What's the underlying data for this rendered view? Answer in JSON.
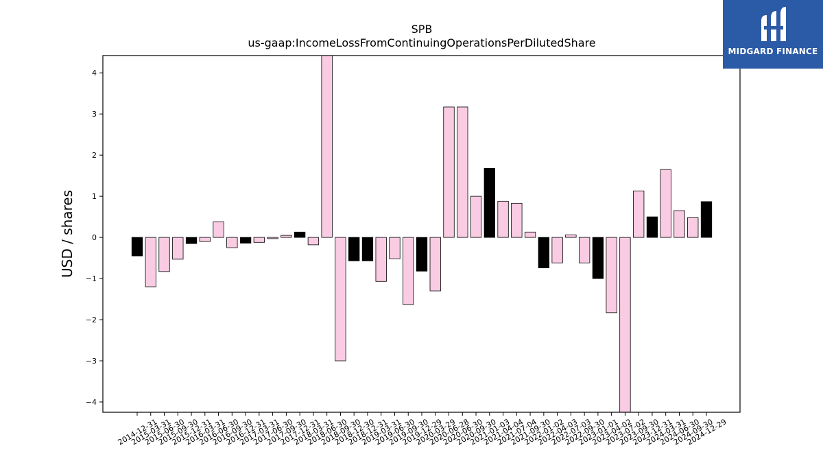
{
  "chart_data": {
    "type": "bar",
    "title": "SPB",
    "subtitle": "us-gaap:IncomeLossFromContinuingOperationsPerDilutedShare",
    "xlabel": "",
    "ylabel": "USD / shares",
    "ylim": [
      -4.25,
      4.42
    ],
    "yticks": [
      -4,
      -3,
      -2,
      -1,
      0,
      1,
      2,
      3,
      4
    ],
    "ytick_labels": [
      "−4",
      "−3",
      "−2",
      "−1",
      "0",
      "1",
      "2",
      "3",
      "4"
    ],
    "categories": [
      "2014-12-31",
      "2015-03-31",
      "2015-06-30",
      "2015-09-30",
      "2015-12-31",
      "2016-03-31",
      "2016-06-30",
      "2016-09-30",
      "2016-12-31",
      "2017-03-31",
      "2017-06-30",
      "2017-09-30",
      "2017-12-31",
      "2018-03-31",
      "2018-06-30",
      "2018-09-30",
      "2018-12-30",
      "2018-12-31",
      "2019-03-31",
      "2019-06-30",
      "2019-09-30",
      "2019-12-29",
      "2020-03-29",
      "2020-06-28",
      "2020-06-30",
      "2020-09-30",
      "2021-01-03",
      "2021-04-04",
      "2021-07-04",
      "2021-09-30",
      "2022-01-02",
      "2022-04-03",
      "2022-07-03",
      "2022-09-30",
      "2023-01-01",
      "2023-04-02",
      "2023-07-02",
      "2023-09-30",
      "2023-12-31",
      "2024-03-31",
      "2024-06-30",
      "2024-09-30",
      "2024-12-29"
    ],
    "values": [
      -0.45,
      -1.2,
      -0.83,
      -0.53,
      -0.15,
      -0.1,
      0.38,
      -0.25,
      -0.14,
      -0.12,
      -0.03,
      0.05,
      0.13,
      -0.18,
      4.5,
      -3.0,
      -0.57,
      -0.57,
      -1.07,
      -0.52,
      -1.63,
      -0.82,
      -1.3,
      3.17,
      3.17,
      1.0,
      1.68,
      0.88,
      0.83,
      0.13,
      -0.74,
      -0.62,
      0.06,
      -0.62,
      -1.0,
      -1.83,
      -4.32,
      1.13,
      0.5,
      1.65,
      0.65,
      0.48,
      0.87
    ],
    "bar_colors": [
      "#000000",
      "#f9cce3",
      "#f9cce3",
      "#f9cce3",
      "#000000",
      "#f9cce3",
      "#f9cce3",
      "#f9cce3",
      "#000000",
      "#f9cce3",
      "#f9cce3",
      "#f9cce3",
      "#000000",
      "#f9cce3",
      "#f9cce3",
      "#f9cce3",
      "#000000",
      "#000000",
      "#f9cce3",
      "#f9cce3",
      "#f9cce3",
      "#000000",
      "#f9cce3",
      "#f9cce3",
      "#f9cce3",
      "#f9cce3",
      "#000000",
      "#f9cce3",
      "#f9cce3",
      "#f9cce3",
      "#000000",
      "#f9cce3",
      "#f9cce3",
      "#f9cce3",
      "#000000",
      "#f9cce3",
      "#f9cce3",
      "#f9cce3",
      "#000000",
      "#f9cce3",
      "#f9cce3",
      "#f9cce3",
      "#000000"
    ],
    "grid": false,
    "legend": "none"
  },
  "logo": {
    "text": "MIDGARD FINANCE",
    "background": "#2b5aa6",
    "icon": "midgard-logo-icon"
  }
}
